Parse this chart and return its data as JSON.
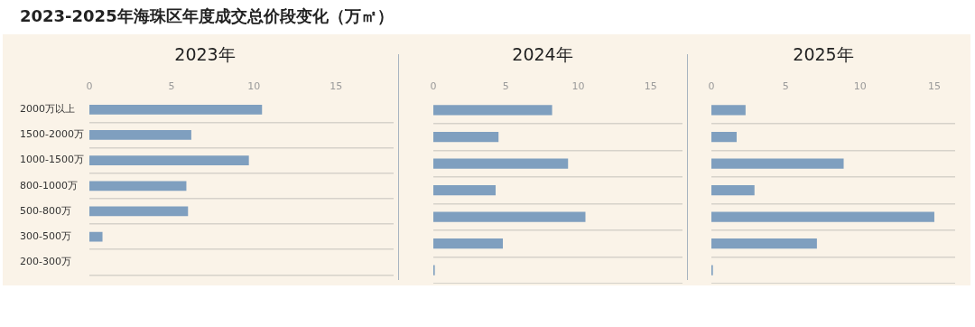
{
  "chart_data": [
    {
      "type": "bar",
      "title": "2023-2025年海珠区年度成交总价段变化（万㎡）",
      "subtitle": "2023年",
      "orientation": "horizontal",
      "categories": [
        "2000万以上",
        "1500-2000万",
        "1000-1500万",
        "800-1000万",
        "500-800万",
        "300-500万",
        "200-300万"
      ],
      "values": [
        10.5,
        6.2,
        9.7,
        5.9,
        6.0,
        0.8,
        0
      ],
      "color": "#7f9fbf",
      "xlim": [
        0,
        18.5
      ],
      "xticks": [
        0,
        5,
        10,
        15
      ],
      "grid": "y"
    },
    {
      "type": "bar",
      "title": "2024年",
      "orientation": "horizontal",
      "categories": [
        null,
        null,
        null,
        null,
        null,
        null,
        null
      ],
      "values": [
        8.2,
        4.5,
        9.3,
        4.3,
        10.5,
        4.8,
        0.1
      ],
      "color": "#7f9fbf",
      "xlim": [
        0,
        17.2
      ],
      "xticks": [
        0,
        5,
        10,
        15
      ],
      "grid": "y",
      "tick_labels": "x"
    },
    {
      "type": "bar",
      "title": "2025年",
      "orientation": "horizontal",
      "categories": [
        null,
        null,
        null,
        null,
        null,
        null,
        null
      ],
      "values": [
        2.3,
        1.7,
        8.9,
        2.9,
        15.0,
        7.1,
        0.1
      ],
      "color": "#7f9fbf",
      "xlim": [
        0,
        16.4
      ],
      "xticks": [
        0,
        5,
        10,
        15
      ],
      "grid": "y",
      "tick_labels": "x"
    }
  ]
}
